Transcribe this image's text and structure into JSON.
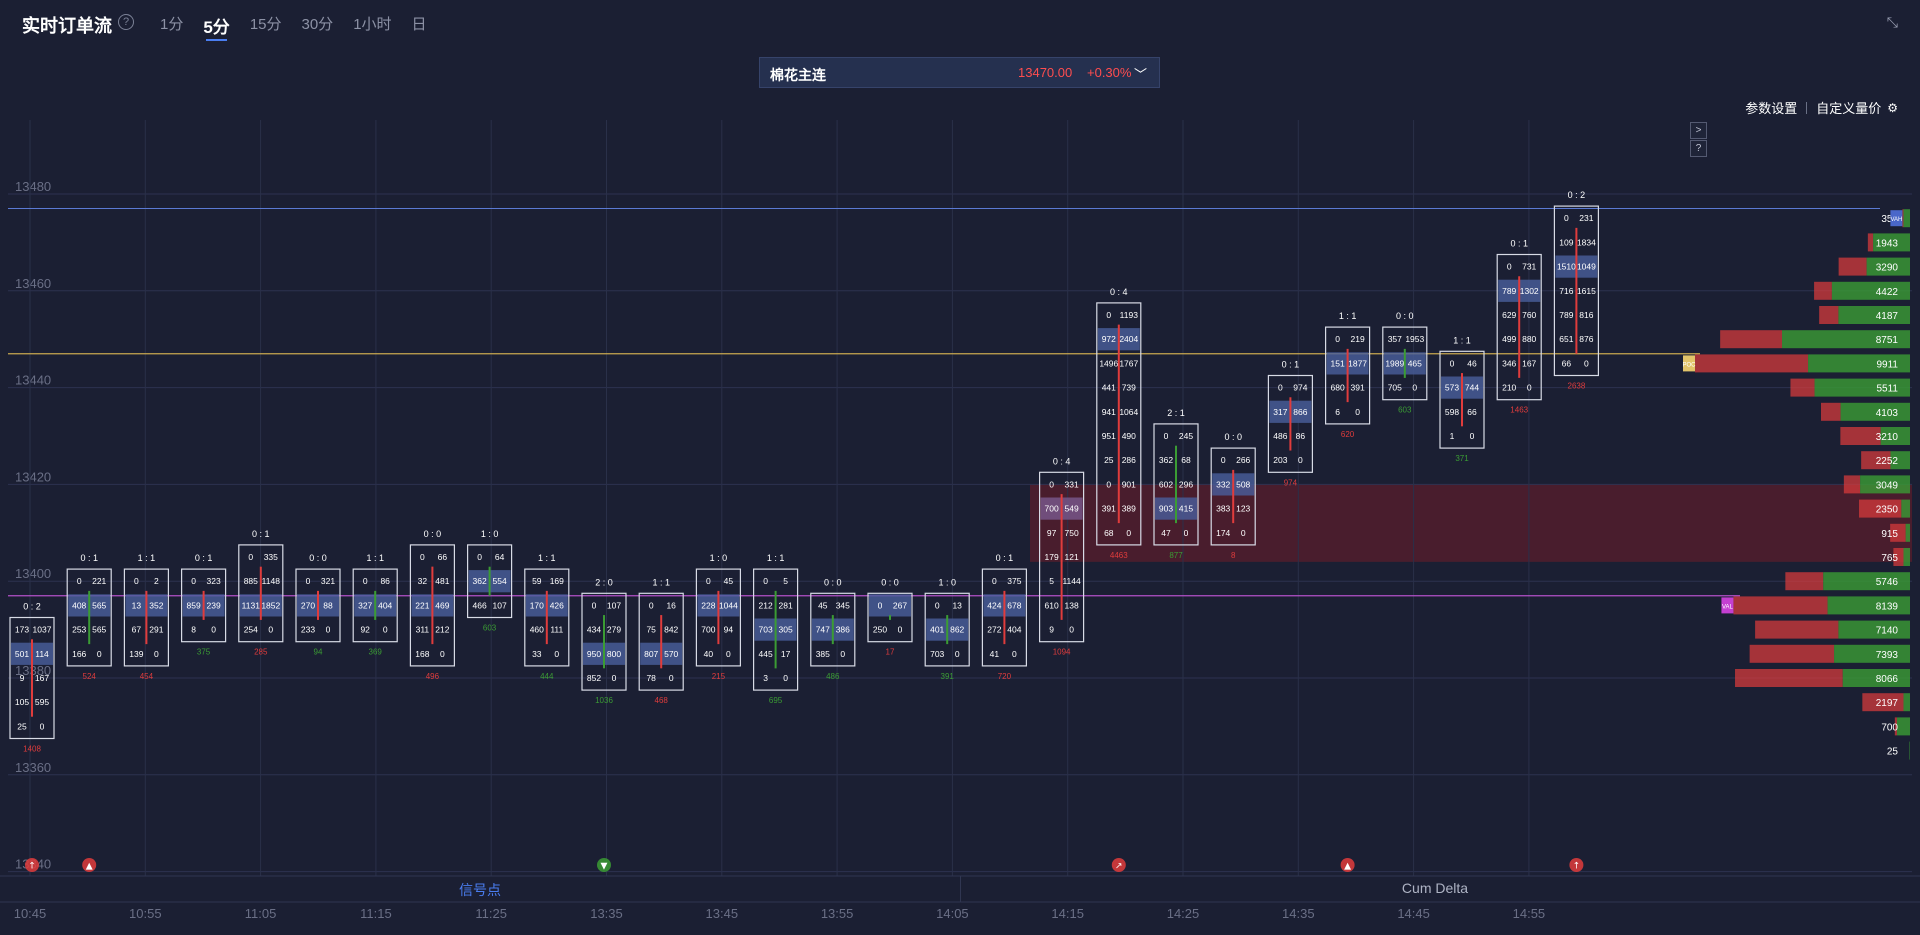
{
  "header": {
    "title": "实时订单流",
    "help": "?",
    "tabs": [
      "1分",
      "5分",
      "15分",
      "30分",
      "1小时",
      "日"
    ],
    "active_tab": 1,
    "collapse": "⤡"
  },
  "ticker": {
    "name": "棉花主连",
    "price": "13470.00",
    "change": "+0.30%",
    "caret": "﹀"
  },
  "settings": {
    "params": "参数设置",
    "custom": "自定义量价",
    "gear": "⚙"
  },
  "mini_buttons": [
    ">",
    "?"
  ],
  "panels": {
    "signal": "信号点",
    "cum_delta": "Cum Delta"
  },
  "colors": {
    "bg": "#1b1f33",
    "buy": "#3b9c34",
    "sell": "#e03c3c",
    "blue": "#4a5f9c",
    "purple": "#7a5a8f",
    "poc": "#e3c46a",
    "val": "#c43fd1",
    "zone": "#5a1e2c"
  },
  "chart_data": {
    "type": "footprint",
    "price_axis": {
      "ticks": [
        13480,
        13460,
        13440,
        13420,
        13400,
        13380,
        13360,
        13340
      ],
      "tick_step": 5
    },
    "time_axis": [
      "10:45",
      "10:55",
      "11:05",
      "11:15",
      "11:25",
      "13:35",
      "13:45",
      "13:55",
      "14:05",
      "14:15",
      "14:25",
      "14:35",
      "14:45",
      "14:55"
    ],
    "reference_lines": {
      "value_high": 13477,
      "poc": 13447,
      "value_low": 13397
    },
    "zone": {
      "low": 13404,
      "high": 13420
    },
    "candles": [
      {
        "ratio": "0 : 2",
        "top": 13390,
        "delta": "1408",
        "dc": "r",
        "body": "r",
        "rows": [
          [
            "173",
            "1037"
          ],
          [
            "501",
            "114"
          ],
          [
            "9",
            "167"
          ],
          [
            "105",
            "595"
          ],
          [
            "25",
            "0"
          ]
        ],
        "hl": [
          1
        ]
      },
      {
        "ratio": "0 : 1",
        "top": 13400,
        "delta": "524",
        "dc": "r",
        "body": "g",
        "rows": [
          [
            "0",
            "221"
          ],
          [
            "408",
            "565"
          ],
          [
            "253",
            "565"
          ],
          [
            "166",
            "0"
          ]
        ],
        "hl": [
          1
        ]
      },
      {
        "ratio": "1 : 1",
        "top": 13400,
        "delta": "454",
        "dc": "r",
        "body": "r",
        "rows": [
          [
            "0",
            "2"
          ],
          [
            "13",
            "352"
          ],
          [
            "67",
            "291"
          ],
          [
            "139",
            "0"
          ]
        ],
        "hl": [
          1
        ]
      },
      {
        "ratio": "0 : 1",
        "top": 13400,
        "delta": "375",
        "dc": "g",
        "body": "r",
        "rows": [
          [
            "0",
            "323"
          ],
          [
            "859",
            "239"
          ],
          [
            "8",
            "0"
          ]
        ],
        "hl": [
          1
        ]
      },
      {
        "ratio": "0 : 1",
        "top": 13405,
        "delta": "285",
        "dc": "r",
        "body": "r",
        "rows": [
          [
            "0",
            "335"
          ],
          [
            "885",
            "1148"
          ],
          [
            "1131",
            "1852"
          ],
          [
            "254",
            "0"
          ]
        ],
        "hl": [
          2
        ]
      },
      {
        "ratio": "0 : 0",
        "top": 13400,
        "delta": "94",
        "dc": "g",
        "body": "r",
        "rows": [
          [
            "0",
            "321"
          ],
          [
            "270",
            "88"
          ],
          [
            "233",
            "0"
          ]
        ],
        "hl": [
          1
        ]
      },
      {
        "ratio": "1 : 1",
        "top": 13400,
        "delta": "369",
        "dc": "g",
        "body": "g",
        "rows": [
          [
            "0",
            "86"
          ],
          [
            "327",
            "404"
          ],
          [
            "92",
            "0"
          ]
        ],
        "hl": [
          1
        ]
      },
      {
        "ratio": "0 : 0",
        "top": 13405,
        "delta": "496",
        "dc": "r",
        "body": "r",
        "rows": [
          [
            "0",
            "66"
          ],
          [
            "32",
            "481"
          ],
          [
            "221",
            "469"
          ],
          [
            "311",
            "212"
          ],
          [
            "168",
            "0"
          ]
        ],
        "hl": [
          2
        ]
      },
      {
        "ratio": "1 : 0",
        "top": 13405,
        "delta": "603",
        "dc": "g",
        "body": "g",
        "rows": [
          [
            "0",
            "64"
          ],
          [
            "362",
            "554"
          ],
          [
            "466",
            "107"
          ]
        ],
        "hl": [
          1
        ]
      },
      {
        "ratio": "1 : 1",
        "top": 13400,
        "delta": "444",
        "dc": "g",
        "body": "r",
        "rows": [
          [
            "59",
            "169"
          ],
          [
            "170",
            "426"
          ],
          [
            "460",
            "111"
          ],
          [
            "33",
            "0"
          ]
        ],
        "hl": [
          1
        ]
      },
      {
        "ratio": "2 : 0",
        "top": 13395,
        "delta": "1036",
        "dc": "g",
        "body": "g",
        "rows": [
          [
            "0",
            "107"
          ],
          [
            "434",
            "279"
          ],
          [
            "950",
            "800"
          ],
          [
            "852",
            "0"
          ]
        ],
        "hl": [
          2
        ]
      },
      {
        "ratio": "1 : 1",
        "top": 13395,
        "delta": "468",
        "dc": "r",
        "body": "r",
        "rows": [
          [
            "0",
            "16"
          ],
          [
            "75",
            "842"
          ],
          [
            "807",
            "570"
          ],
          [
            "78",
            "0"
          ]
        ],
        "hl": [
          2
        ]
      },
      {
        "ratio": "1 : 0",
        "top": 13400,
        "delta": "215",
        "dc": "r",
        "body": "r",
        "rows": [
          [
            "0",
            "45"
          ],
          [
            "228",
            "1044"
          ],
          [
            "700",
            "94"
          ],
          [
            "40",
            "0"
          ]
        ],
        "hl": [
          1
        ]
      },
      {
        "ratio": "1 : 1",
        "top": 13400,
        "delta": "695",
        "dc": "g",
        "body": "g",
        "rows": [
          [
            "0",
            "5"
          ],
          [
            "212",
            "281"
          ],
          [
            "703",
            "305"
          ],
          [
            "445",
            "17"
          ],
          [
            "3",
            "0"
          ]
        ],
        "hl": [
          2
        ]
      },
      {
        "ratio": "0 : 0",
        "top": 13395,
        "delta": "486",
        "dc": "g",
        "body": "g",
        "rows": [
          [
            "45",
            "345"
          ],
          [
            "747",
            "386"
          ],
          [
            "385",
            "0"
          ]
        ],
        "hl": [
          1
        ]
      },
      {
        "ratio": "0 : 0",
        "top": 13395,
        "delta": "17",
        "dc": "r",
        "body": "g",
        "rows": [
          [
            "0",
            "267"
          ],
          [
            "250",
            "0"
          ]
        ],
        "hl": [
          0
        ]
      },
      {
        "ratio": "1 : 0",
        "top": 13395,
        "delta": "391",
        "dc": "g",
        "body": "g",
        "rows": [
          [
            "0",
            "13"
          ],
          [
            "401",
            "862"
          ],
          [
            "703",
            "0"
          ]
        ],
        "hl": [
          1
        ]
      },
      {
        "ratio": "0 : 1",
        "top": 13400,
        "delta": "720",
        "dc": "r",
        "body": "r",
        "rows": [
          [
            "0",
            "375"
          ],
          [
            "424",
            "678"
          ],
          [
            "272",
            "404"
          ],
          [
            "41",
            "0"
          ]
        ],
        "hl": [
          1
        ]
      },
      {
        "ratio": "0 : 4",
        "top": 13420,
        "delta": "1094",
        "dc": "r",
        "body": "r",
        "rows": [
          [
            "0",
            "331"
          ],
          [
            "700",
            "549"
          ],
          [
            "97",
            "750"
          ],
          [
            "179",
            "121"
          ],
          [
            "5",
            "1144"
          ],
          [
            "610",
            "138"
          ],
          [
            "9",
            "0"
          ]
        ],
        "hl": [
          1
        ],
        "hp": [
          1
        ]
      },
      {
        "ratio": "0 : 4",
        "top": 13455,
        "delta": "4463",
        "dc": "r",
        "body": "r",
        "rows": [
          [
            "0",
            "1193"
          ],
          [
            "972",
            "2404"
          ],
          [
            "1496",
            "1767"
          ],
          [
            "441",
            "739"
          ],
          [
            "941",
            "1064"
          ],
          [
            "951",
            "490"
          ],
          [
            "25",
            "286"
          ],
          [
            "0",
            "901"
          ],
          [
            "391",
            "389"
          ],
          [
            "68",
            "0"
          ]
        ],
        "hl": [
          1
        ]
      },
      {
        "ratio": "2 : 1",
        "top": 13430,
        "delta": "877",
        "dc": "g",
        "body": "g",
        "rows": [
          [
            "0",
            "245"
          ],
          [
            "362",
            "68"
          ],
          [
            "602",
            "296"
          ],
          [
            "903",
            "415"
          ],
          [
            "47",
            "0"
          ]
        ],
        "hl": [
          3
        ]
      },
      {
        "ratio": "0 : 0",
        "top": 13425,
        "delta": "8",
        "dc": "r",
        "body": "r",
        "rows": [
          [
            "0",
            "266"
          ],
          [
            "332",
            "508"
          ],
          [
            "383",
            "123"
          ],
          [
            "174",
            "0"
          ]
        ],
        "hl": [
          1
        ]
      },
      {
        "ratio": "0 : 1",
        "top": 13440,
        "delta": "974",
        "dc": "r",
        "body": "r",
        "rows": [
          [
            "0",
            "974"
          ],
          [
            "317",
            "866"
          ],
          [
            "486",
            "86"
          ],
          [
            "203",
            "0"
          ]
        ],
        "hl": [
          1
        ]
      },
      {
        "ratio": "1 : 1",
        "top": 13450,
        "delta": "620",
        "dc": "r",
        "body": "r",
        "rows": [
          [
            "0",
            "219"
          ],
          [
            "151",
            "1877"
          ],
          [
            "680",
            "391"
          ],
          [
            "6",
            "0"
          ]
        ],
        "hl": [
          1
        ]
      },
      {
        "ratio": "0 : 0",
        "top": 13450,
        "delta": "603",
        "dc": "g",
        "body": "g",
        "rows": [
          [
            "357",
            "1953"
          ],
          [
            "1989",
            "465"
          ],
          [
            "705",
            "0"
          ]
        ],
        "hl": [
          1
        ]
      },
      {
        "ratio": "1 : 1",
        "top": 13445,
        "delta": "371",
        "dc": "g",
        "body": "r",
        "rows": [
          [
            "0",
            "46"
          ],
          [
            "573",
            "744"
          ],
          [
            "598",
            "66"
          ],
          [
            "1",
            "0"
          ]
        ],
        "hl": [
          1
        ]
      },
      {
        "ratio": "0 : 1",
        "top": 13465,
        "delta": "1463",
        "dc": "r",
        "body": "r",
        "rows": [
          [
            "0",
            "731"
          ],
          [
            "789",
            "1302"
          ],
          [
            "629",
            "760"
          ],
          [
            "499",
            "880"
          ],
          [
            "346",
            "167"
          ],
          [
            "210",
            "0"
          ]
        ],
        "hl": [
          1
        ]
      },
      {
        "ratio": "0 : 2",
        "top": 13475,
        "delta": "2638",
        "dc": "r",
        "body": "r",
        "rows": [
          [
            "0",
            "231"
          ],
          [
            "109",
            "1834"
          ],
          [
            "1510",
            "1049"
          ],
          [
            "716",
            "1615"
          ],
          [
            "789",
            "816"
          ],
          [
            "651",
            "876"
          ],
          [
            "66",
            "0"
          ]
        ],
        "hl": [
          2
        ]
      }
    ],
    "volume_profile": [
      {
        "price": 13475,
        "total": "350",
        "buy": 300,
        "sell": 50,
        "tag": "VAH"
      },
      {
        "price": 13470,
        "total": "1943",
        "buy": 1700,
        "sell": 243
      },
      {
        "price": 13465,
        "total": "3290",
        "buy": 2000,
        "sell": 1290
      },
      {
        "price": 13460,
        "total": "4422",
        "buy": 3600,
        "sell": 822
      },
      {
        "price": 13455,
        "total": "4187",
        "buy": 3300,
        "sell": 887
      },
      {
        "price": 13450,
        "total": "8751",
        "buy": 5900,
        "sell": 2851
      },
      {
        "price": 13445,
        "total": "9911",
        "buy": 4700,
        "sell": 5211,
        "tag": "POC"
      },
      {
        "price": 13440,
        "total": "5511",
        "buy": 4400,
        "sell": 1111
      },
      {
        "price": 13435,
        "total": "4103",
        "buy": 3200,
        "sell": 903
      },
      {
        "price": 13430,
        "total": "3210",
        "buy": 1350,
        "sell": 1860
      },
      {
        "price": 13425,
        "total": "2252",
        "buy": 900,
        "sell": 1352
      },
      {
        "price": 13420,
        "total": "3049",
        "buy": 2300,
        "sell": 749
      },
      {
        "price": 13415,
        "total": "2350",
        "buy": 400,
        "sell": 1950
      },
      {
        "price": 13410,
        "total": "915",
        "buy": 200,
        "sell": 715
      },
      {
        "price": 13405,
        "total": "765",
        "buy": 300,
        "sell": 465
      },
      {
        "price": 13400,
        "total": "5746",
        "buy": 4000,
        "sell": 1746
      },
      {
        "price": 13395,
        "total": "8139",
        "buy": 3800,
        "sell": 4339,
        "tag": "VAL"
      },
      {
        "price": 13390,
        "total": "7140",
        "buy": 3300,
        "sell": 3840
      },
      {
        "price": 13385,
        "total": "7393",
        "buy": 3500,
        "sell": 3893
      },
      {
        "price": 13380,
        "total": "8066",
        "buy": 3100,
        "sell": 4966
      },
      {
        "price": 13375,
        "total": "2197",
        "buy": 300,
        "sell": 1897
      },
      {
        "price": 13370,
        "total": "700",
        "buy": 600,
        "sell": 100
      },
      {
        "price": 13365,
        "total": "25",
        "buy": 25,
        "sell": 0
      }
    ],
    "signals": [
      {
        "candle": 0,
        "type": "up",
        "color": "#e03c3c"
      },
      {
        "candle": 1,
        "type": "up-tri",
        "color": "#e03c3c"
      },
      {
        "candle": 10,
        "type": "down-tri",
        "color": "#3b9c34"
      },
      {
        "candle": 19,
        "type": "diag",
        "color": "#e03c3c"
      },
      {
        "candle": 23,
        "type": "up-tri",
        "color": "#e03c3c"
      },
      {
        "candle": 27,
        "type": "up",
        "color": "#e03c3c"
      }
    ]
  }
}
